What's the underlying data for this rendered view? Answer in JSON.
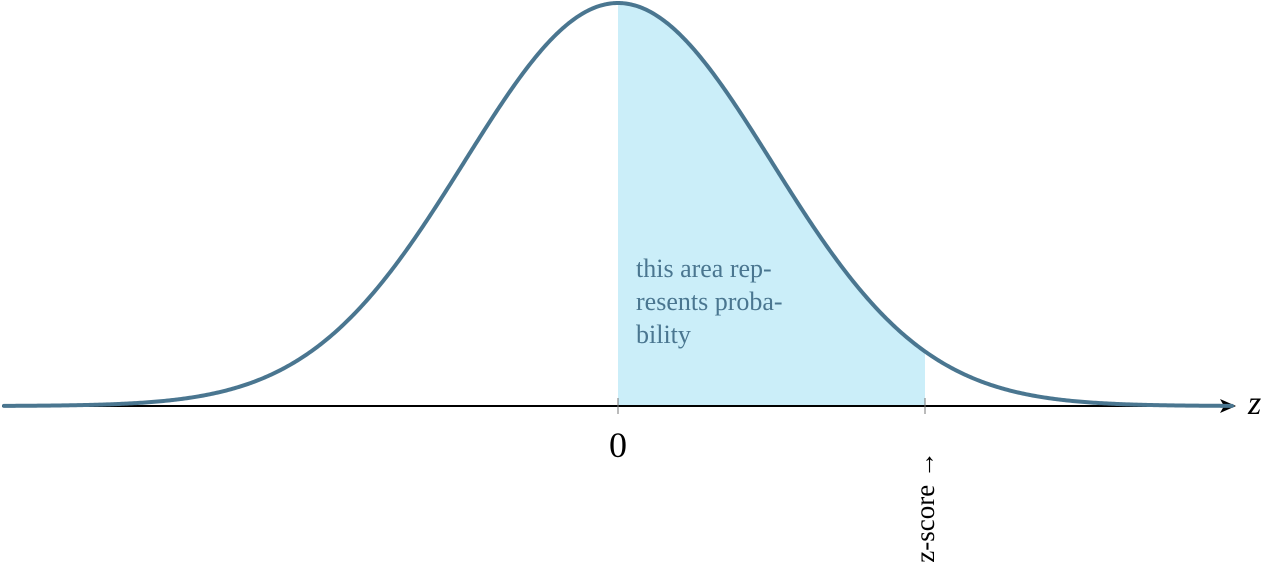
{
  "diagram": {
    "axis_label": "z",
    "tick_zero_label": "0",
    "tick_z_label": "z-score →",
    "annotation_lines": [
      "this area rep-",
      "resents proba-",
      "bility"
    ]
  },
  "chart_data": {
    "type": "area",
    "x_domain": [
      -4,
      4
    ],
    "shaded_interval": [
      0,
      2
    ],
    "curve": "standard normal density"
  },
  "colors": {
    "curve": "#4a7690",
    "shade": "#cbeef9",
    "annotation_text": "#4a7690",
    "axis": "#000000"
  }
}
